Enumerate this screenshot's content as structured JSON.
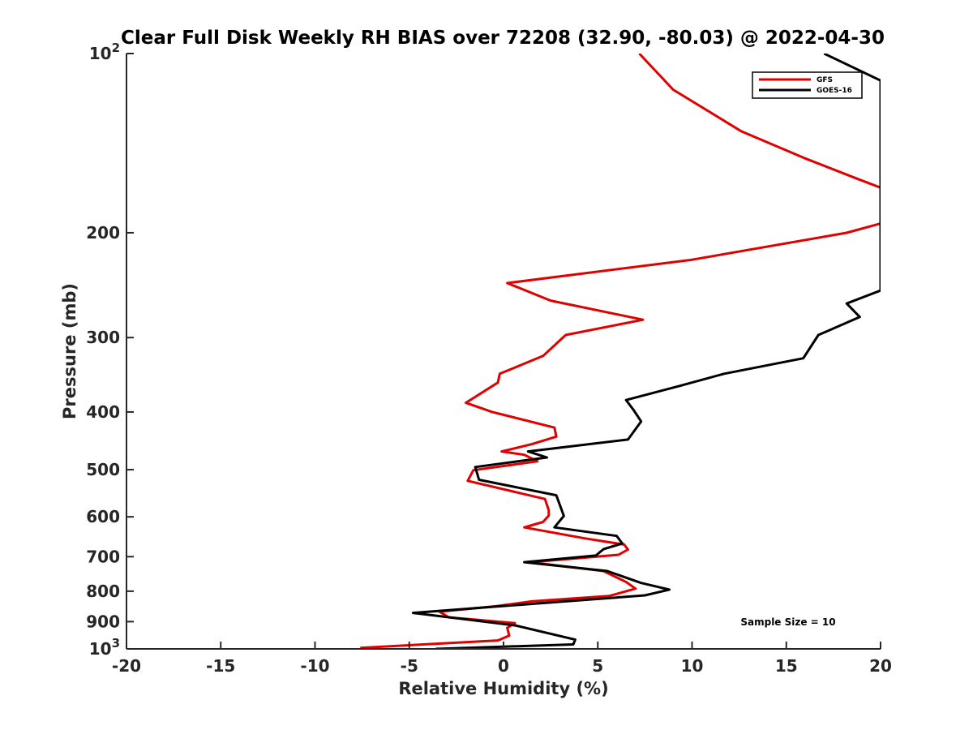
{
  "chart_data": {
    "type": "line",
    "title": "Clear Full Disk Weekly RH BIAS over 72208 (32.90, -80.03) @ 2022-04-30",
    "xlabel": "Relative Humidity (%)",
    "ylabel": "Pressure (mb)",
    "xlim": [
      -20,
      20
    ],
    "ylim": [
      100,
      1000
    ],
    "y_scale": "log",
    "y_reversed": true,
    "x_ticks": [
      {
        "value": -20,
        "label": "-20"
      },
      {
        "value": -15,
        "label": "-15"
      },
      {
        "value": -10,
        "label": "-10"
      },
      {
        "value": -5,
        "label": "-5"
      },
      {
        "value": 0,
        "label": "0"
      },
      {
        "value": 5,
        "label": "5"
      },
      {
        "value": 10,
        "label": "10"
      },
      {
        "value": 15,
        "label": "15"
      },
      {
        "value": 20,
        "label": "20"
      }
    ],
    "y_ticks": [
      {
        "value": 100,
        "base": "10",
        "exp": "2"
      },
      {
        "value": 200,
        "base": "200",
        "exp": ""
      },
      {
        "value": 300,
        "base": "300",
        "exp": ""
      },
      {
        "value": 400,
        "base": "400",
        "exp": ""
      },
      {
        "value": 500,
        "base": "500",
        "exp": ""
      },
      {
        "value": 600,
        "base": "600",
        "exp": ""
      },
      {
        "value": 700,
        "base": "700",
        "exp": ""
      },
      {
        "value": 800,
        "base": "800",
        "exp": ""
      },
      {
        "value": 900,
        "base": "900",
        "exp": ""
      },
      {
        "value": 1000,
        "base": "10",
        "exp": "3"
      }
    ],
    "grid": false,
    "legend_position": "top-right",
    "annotation": "Sample Size = 10",
    "series": [
      {
        "name": "GFS",
        "color": "#e00000",
        "points": [
          [
            7.2,
            100
          ],
          [
            9.0,
            115
          ],
          [
            12.6,
            135
          ],
          [
            16.0,
            150
          ],
          [
            18.7,
            162
          ],
          [
            20.0,
            168
          ],
          [
            20.0,
            193
          ],
          [
            18.2,
            200
          ],
          [
            10.0,
            222
          ],
          [
            0.2,
            243
          ],
          [
            2.5,
            260
          ],
          [
            7.4,
            280
          ],
          [
            3.3,
            297
          ],
          [
            2.1,
            322
          ],
          [
            -0.2,
            345
          ],
          [
            -0.3,
            357
          ],
          [
            -2.0,
            386
          ],
          [
            -0.6,
            400
          ],
          [
            2.7,
            425
          ],
          [
            2.8,
            440
          ],
          [
            1.5,
            453
          ],
          [
            -0.1,
            466
          ],
          [
            1.1,
            472
          ],
          [
            1.8,
            484
          ],
          [
            -1.6,
            501
          ],
          [
            -1.9,
            522
          ],
          [
            2.2,
            560
          ],
          [
            2.4,
            585
          ],
          [
            2.4,
            597
          ],
          [
            2.1,
            612
          ],
          [
            1.1,
            625
          ],
          [
            4.3,
            652
          ],
          [
            6.4,
            668
          ],
          [
            6.6,
            681
          ],
          [
            6.1,
            695
          ],
          [
            1.4,
            715
          ],
          [
            5.3,
            740
          ],
          [
            6.5,
            772
          ],
          [
            7.0,
            792
          ],
          [
            5.6,
            815
          ],
          [
            1.5,
            832
          ],
          [
            -0.4,
            848
          ],
          [
            -3.4,
            866
          ],
          [
            -2.9,
            885
          ],
          [
            0.6,
            905
          ],
          [
            0.2,
            922
          ],
          [
            0.3,
            950
          ],
          [
            -0.3,
            968
          ],
          [
            -7.6,
            996
          ]
        ]
      },
      {
        "name": "GOES-16",
        "color": "#000000",
        "points": [
          [
            17.0,
            100
          ],
          [
            20.0,
            111
          ],
          [
            20.0,
            250
          ],
          [
            18.2,
            263
          ],
          [
            18.9,
            277
          ],
          [
            16.7,
            297
          ],
          [
            15.9,
            325
          ],
          [
            11.7,
            345
          ],
          [
            9.3,
            362
          ],
          [
            6.5,
            382
          ],
          [
            6.9,
            397
          ],
          [
            7.3,
            415
          ],
          [
            6.6,
            445
          ],
          [
            1.3,
            466
          ],
          [
            2.3,
            477
          ],
          [
            -1.5,
            495
          ],
          [
            -1.3,
            520
          ],
          [
            2.8,
            552
          ],
          [
            3.2,
            598
          ],
          [
            2.7,
            625
          ],
          [
            6.0,
            646
          ],
          [
            6.3,
            665
          ],
          [
            5.3,
            680
          ],
          [
            4.9,
            697
          ],
          [
            1.1,
            715
          ],
          [
            5.5,
            740
          ],
          [
            7.3,
            775
          ],
          [
            8.8,
            795
          ],
          [
            7.5,
            813
          ],
          [
            3.3,
            832
          ],
          [
            -4.8,
            870
          ],
          [
            0.6,
            913
          ],
          [
            3.8,
            965
          ],
          [
            3.7,
            983
          ],
          [
            -3.6,
            1000
          ]
        ]
      }
    ]
  }
}
